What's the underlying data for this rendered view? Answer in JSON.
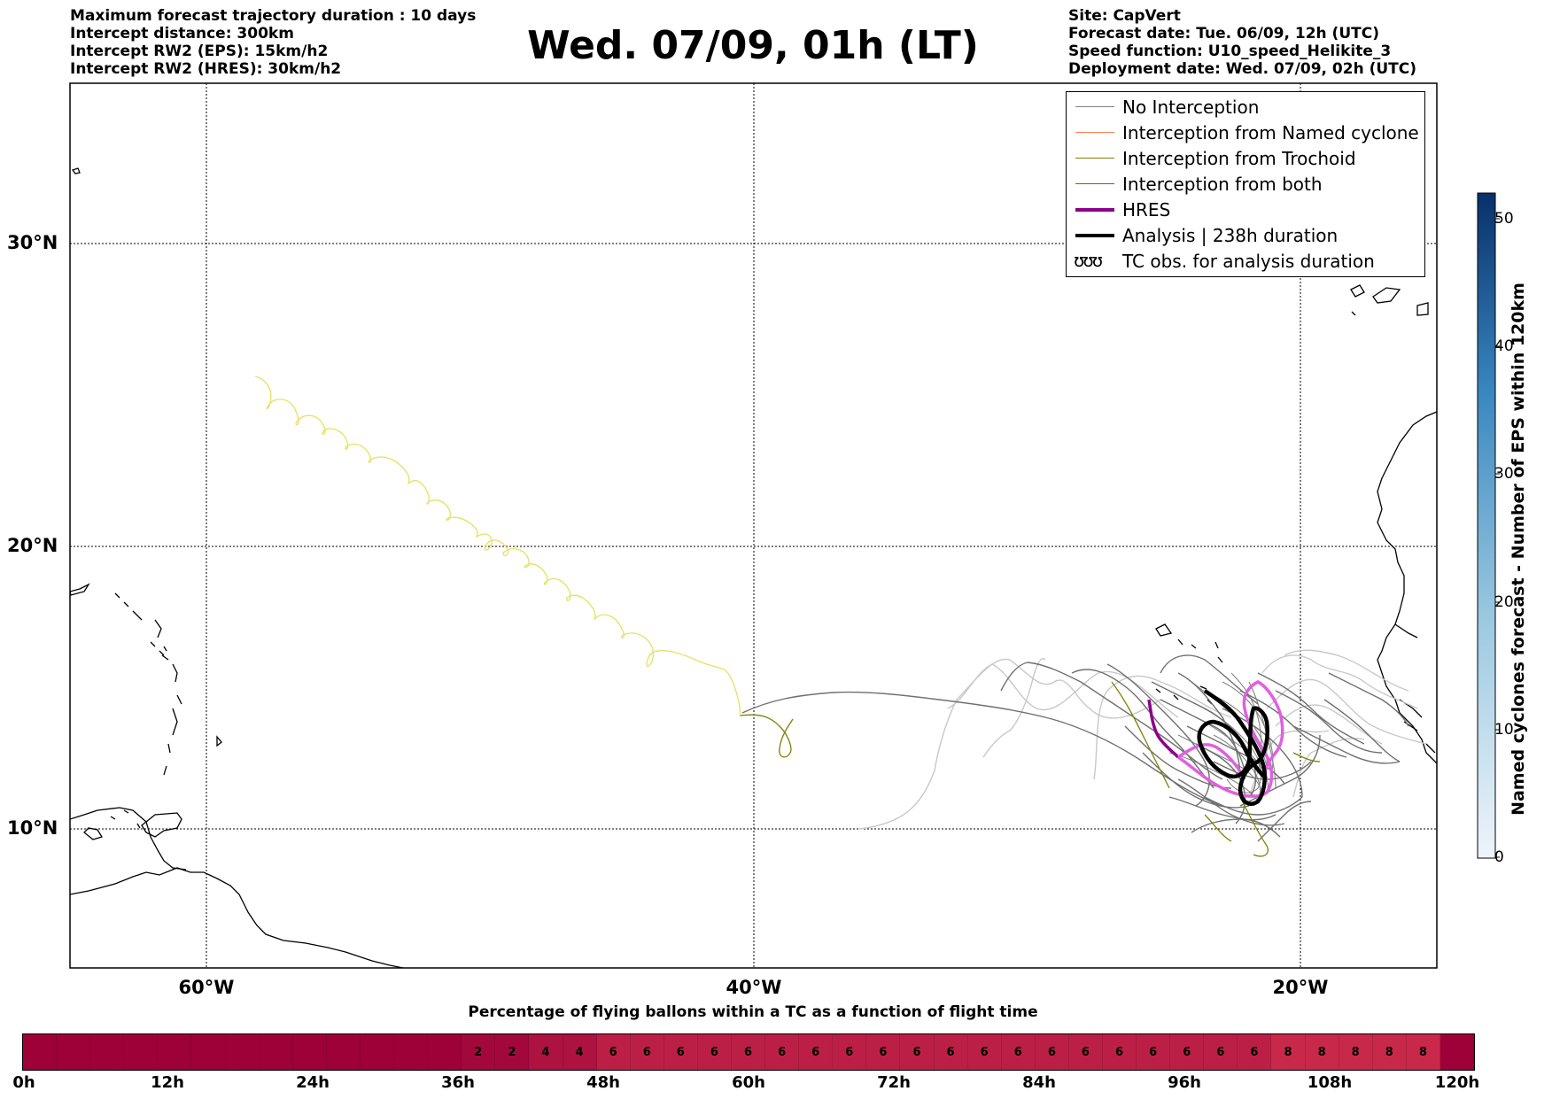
{
  "header": {
    "title": "Wed. 07/09, 01h (LT)",
    "left_info": [
      "Maximum forecast trajectory duration : 10 days",
      "Intercept distance: 300km",
      "Intercept RW2 (EPS):  15km/h2",
      "Intercept RW2 (HRES): 30km/h2"
    ],
    "right_info": [
      "Site: CapVert",
      "Forecast date: Tue. 06/09, 12h (UTC)",
      "Speed function: U10_speed_Helikite_3",
      "Deployment date: Wed. 07/09, 02h (UTC)"
    ]
  },
  "map": {
    "lat_labels": [
      "30°N",
      "20°N",
      "10°N"
    ],
    "lon_labels": [
      "60°W",
      "40°W",
      "20°W"
    ],
    "grid": "dotted",
    "colors": {
      "no_interception": "#707070",
      "no_interception_light": "#c8c8c8",
      "trochoid": "#808000",
      "yellow_track": "#e8e060",
      "hres": "#8b008b",
      "hres_light": "#e060e0",
      "analysis": "#000000"
    }
  },
  "legend": {
    "items": [
      {
        "label": "No Interception",
        "color": "#808080"
      },
      {
        "label": "Interception from Named cyclone",
        "color": "#ff7f50"
      },
      {
        "label": "Interception from Trochoid",
        "color": "#808000"
      },
      {
        "label": "Interception from both",
        "color": "#228b22"
      },
      {
        "label": "HRES",
        "color": "#8b008b"
      },
      {
        "label": "Analysis | 238h duration",
        "color": "#000000"
      },
      {
        "label": "TC obs. for analysis duration",
        "symbol": "ʊʊʊ"
      }
    ]
  },
  "colorbar": {
    "title": "Named cyclones forecast - Number of EPS within 120km",
    "ticks": [
      "0",
      "10",
      "20",
      "30",
      "40",
      "50"
    ],
    "range": [
      0,
      52
    ],
    "color_low": "#eef4fb",
    "color_high": "#08306b"
  },
  "flight_bar": {
    "title": "Percentage of flying ballons within a TC as a function of flight time",
    "hour_labels": [
      "0h",
      "12h",
      "24h",
      "36h",
      "48h",
      "60h",
      "72h",
      "84h",
      "96h",
      "108h",
      "120h"
    ],
    "segments": [
      "",
      "",
      "",
      "",
      "",
      "",
      "",
      "",
      "",
      "",
      "",
      "",
      "",
      "2",
      "2",
      "4",
      "4",
      "6",
      "6",
      "6",
      "6",
      "6",
      "6",
      "6",
      "6",
      "6",
      "6",
      "6",
      "6",
      "6",
      "6",
      "6",
      "6",
      "6",
      "6",
      "6",
      "6",
      "8",
      "8",
      "8",
      "8",
      "8",
      ""
    ],
    "segment_colors": {
      "": "#9e0038",
      "2": "#a3083d",
      "4": "#ad1240",
      "6": "#bc1f45",
      "8": "#c8284a"
    }
  }
}
